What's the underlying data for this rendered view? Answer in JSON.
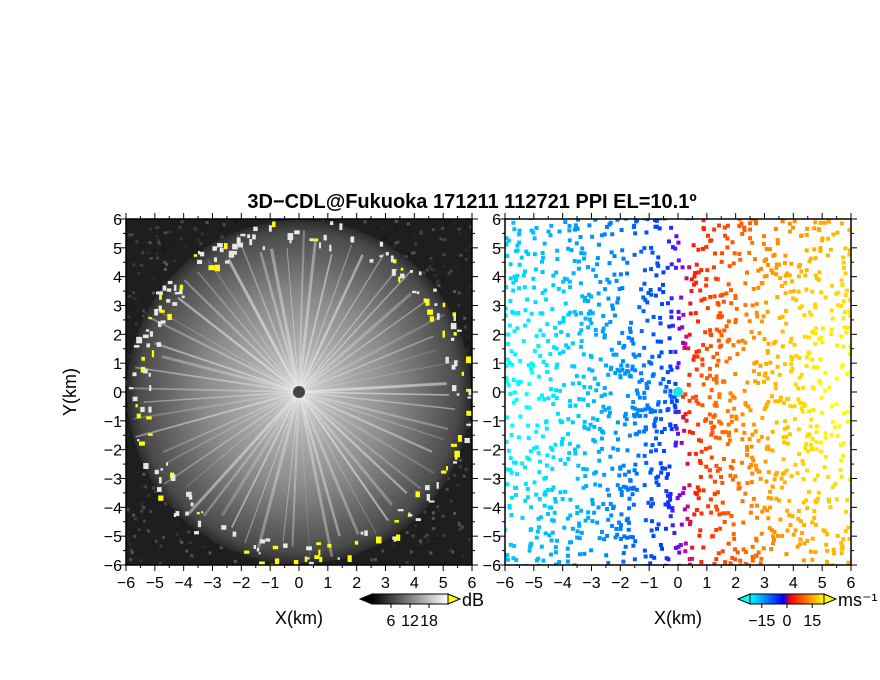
{
  "chart_data": {
    "type": "heatmap",
    "title": "3D−CDL@Fukuoka 171211 112721 PPI EL=10.1º",
    "panels": [
      {
        "id": "reflectivity",
        "xlabel": "X(km)",
        "ylabel": "Y(km)",
        "xlim": [
          -6,
          6
        ],
        "ylim": [
          -6,
          6
        ],
        "xticks": [
          -6,
          -5,
          -4,
          -3,
          -2,
          -1,
          0,
          1,
          2,
          3,
          4,
          5,
          6
        ],
        "yticks": [
          -6,
          -5,
          -4,
          -3,
          -2,
          -1,
          0,
          1,
          2,
          3,
          4,
          5,
          6
        ],
        "xtick_labels": [
          "−6",
          "−5",
          "−4",
          "−3",
          "−2",
          "−1",
          "0",
          "1",
          "2",
          "3",
          "4",
          "5",
          "6"
        ],
        "ytick_labels": [
          "−6",
          "−5",
          "−4",
          "−3",
          "−2",
          "−1",
          "0",
          "1",
          "2",
          "3",
          "4",
          "5",
          "6"
        ],
        "colorbar": {
          "unit": "dB",
          "ticks": [
            6,
            12,
            18
          ],
          "tick_labels": [
            "6",
            "12",
            "18"
          ],
          "range": [
            0,
            24
          ],
          "colors": [
            "#000000",
            "#ffffff"
          ],
          "high_color": "#ffff00"
        }
      },
      {
        "id": "doppler-velocity",
        "xlabel": "X(km)",
        "xlim": [
          -6,
          6
        ],
        "ylim": [
          -6,
          6
        ],
        "xticks": [
          -6,
          -5,
          -4,
          -3,
          -2,
          -1,
          0,
          1,
          2,
          3,
          4,
          5,
          6
        ],
        "yticks": [
          -6,
          -5,
          -4,
          -3,
          -2,
          -1,
          0,
          1,
          2,
          3,
          4,
          5,
          6
        ],
        "xtick_labels": [
          "−6",
          "−5",
          "−4",
          "−3",
          "−2",
          "−1",
          "0",
          "1",
          "2",
          "3",
          "4",
          "5",
          "6"
        ],
        "ytick_labels": [
          "−6",
          "−5",
          "−4",
          "−3",
          "−2",
          "−1",
          "0",
          "1",
          "2",
          "3",
          "4",
          "5",
          "6"
        ],
        "colorbar": {
          "unit": "ms⁻¹",
          "ticks": [
            -15,
            0,
            15
          ],
          "tick_labels": [
            "−15",
            "0",
            "15"
          ],
          "range": [
            -22,
            22
          ],
          "colors": [
            "#00ffff",
            "#0000ff",
            "#ff0000",
            "#ffff00"
          ]
        }
      }
    ]
  }
}
